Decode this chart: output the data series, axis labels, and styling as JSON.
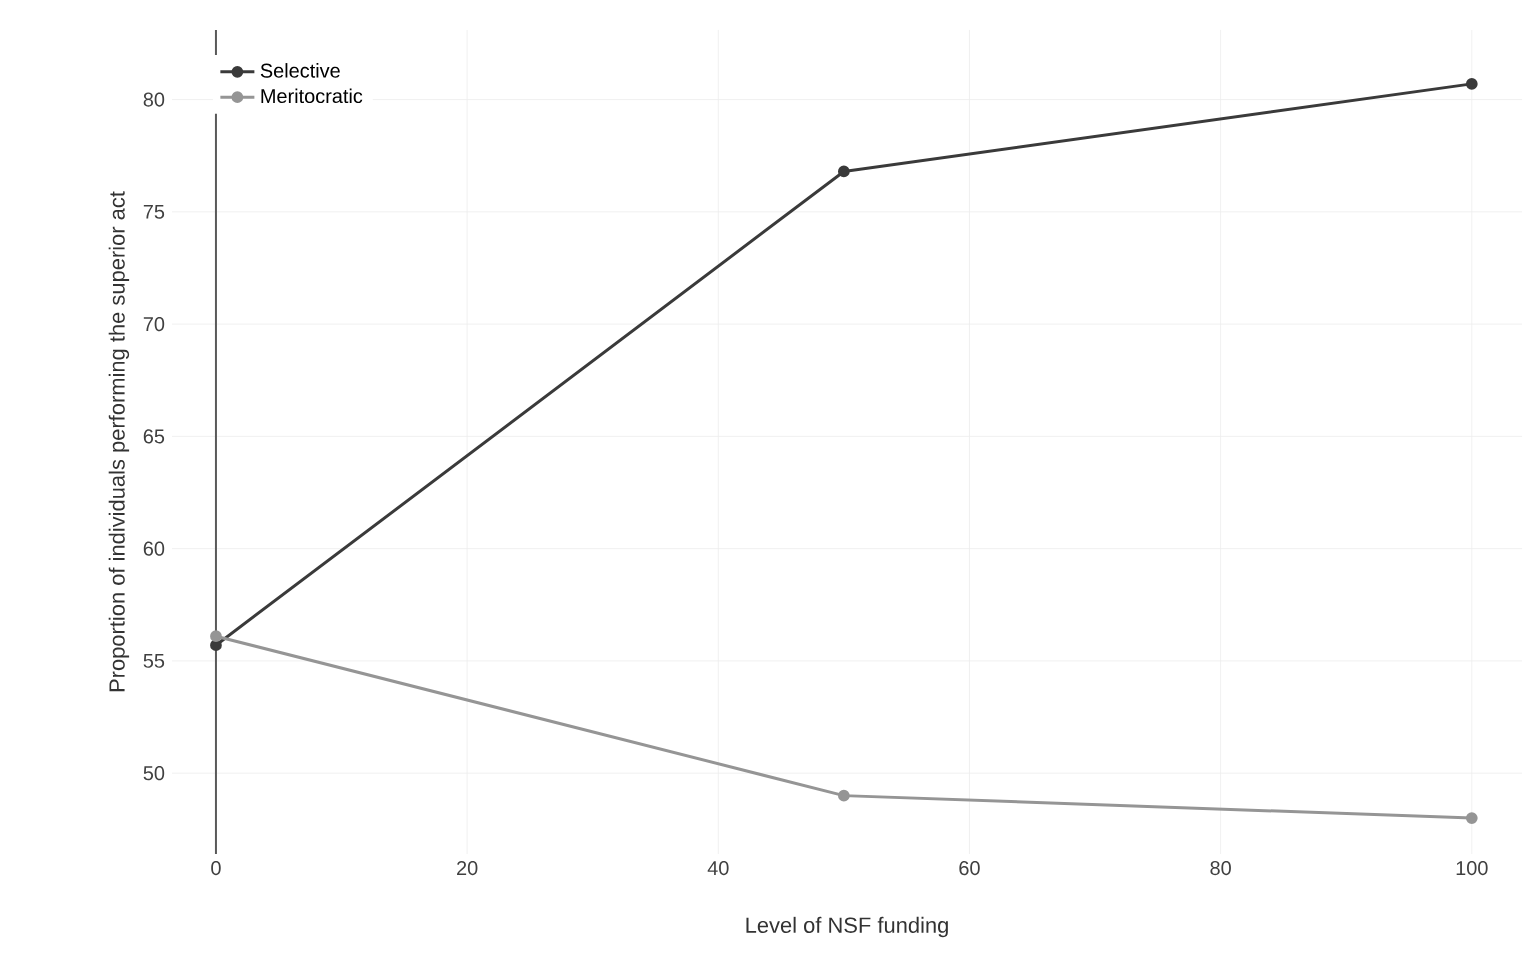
{
  "chart_data": {
    "type": "line",
    "xlabel": "Level of NSF funding",
    "ylabel": "Proportion of individuals performing the superior act",
    "x": [
      0,
      50,
      100
    ],
    "series": [
      {
        "name": "Selective",
        "color": "#3a3a3a",
        "values": [
          55.7,
          76.8,
          80.7
        ]
      },
      {
        "name": "Meritocratic",
        "color": "#959595",
        "values": [
          56.1,
          49.0,
          48.0
        ]
      }
    ],
    "xlim": [
      -3.5,
      104
    ],
    "ylim": [
      46.4,
      83.1
    ],
    "xticks": [
      0,
      20,
      40,
      60,
      80,
      100
    ],
    "yticks": [
      50,
      55,
      60,
      65,
      70,
      75,
      80
    ],
    "grid": true,
    "legend": "top left",
    "marker": "circle",
    "line_style": "solid"
  }
}
